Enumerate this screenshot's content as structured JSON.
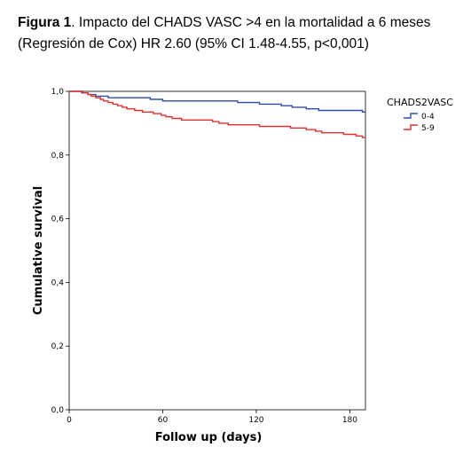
{
  "caption": {
    "label": "Figura 1",
    "text_line1": ". Impacto del CHADS VASC >4 en la mortalidad a 6 meses",
    "text_line2": "(Regresión de Cox) HR 2.60 (95% CI 1.48-4.55, p<0,001)"
  },
  "chart_data": {
    "type": "line",
    "title": "",
    "xlabel": "Follow up (days)",
    "ylabel": "Cumulative survival",
    "xlim": [
      0,
      190
    ],
    "ylim": [
      0.0,
      1.0
    ],
    "x_ticks": [
      {
        "value": 0,
        "label": "0"
      },
      {
        "value": 60,
        "label": "60"
      },
      {
        "value": 120,
        "label": "120"
      },
      {
        "value": 180,
        "label": "180"
      }
    ],
    "y_ticks": [
      {
        "value": 0.0,
        "label": "0,0"
      },
      {
        "value": 0.2,
        "label": "0,2"
      },
      {
        "value": 0.4,
        "label": "0,4"
      },
      {
        "value": 0.6,
        "label": "0,6"
      },
      {
        "value": 0.8,
        "label": "0,8"
      },
      {
        "value": 1.0,
        "label": "1,0"
      }
    ],
    "grid": false,
    "legend": {
      "title": "CHADS2VASC",
      "placement": "top-right"
    },
    "series": [
      {
        "name": "0-4",
        "color": "#2e4da8",
        "step": true,
        "points": [
          [
            0,
            1.0
          ],
          [
            8,
            0.995
          ],
          [
            12,
            0.99
          ],
          [
            17,
            0.985
          ],
          [
            25,
            0.98
          ],
          [
            52,
            0.975
          ],
          [
            60,
            0.97
          ],
          [
            108,
            0.965
          ],
          [
            122,
            0.96
          ],
          [
            136,
            0.955
          ],
          [
            143,
            0.95
          ],
          [
            152,
            0.945
          ],
          [
            160,
            0.94
          ],
          [
            188,
            0.935
          ],
          [
            190,
            0.935
          ]
        ]
      },
      {
        "name": "5-9",
        "color": "#e03030",
        "step": true,
        "points": [
          [
            0,
            1.0
          ],
          [
            9,
            0.995
          ],
          [
            12,
            0.99
          ],
          [
            14,
            0.985
          ],
          [
            17,
            0.98
          ],
          [
            20,
            0.975
          ],
          [
            22,
            0.97
          ],
          [
            25,
            0.965
          ],
          [
            28,
            0.96
          ],
          [
            31,
            0.955
          ],
          [
            34,
            0.95
          ],
          [
            37,
            0.945
          ],
          [
            42,
            0.94
          ],
          [
            47,
            0.935
          ],
          [
            54,
            0.93
          ],
          [
            59,
            0.925
          ],
          [
            62,
            0.92
          ],
          [
            66,
            0.915
          ],
          [
            72,
            0.91
          ],
          [
            92,
            0.905
          ],
          [
            96,
            0.9
          ],
          [
            102,
            0.895
          ],
          [
            122,
            0.89
          ],
          [
            142,
            0.885
          ],
          [
            152,
            0.88
          ],
          [
            158,
            0.875
          ],
          [
            162,
            0.87
          ],
          [
            176,
            0.865
          ],
          [
            184,
            0.86
          ],
          [
            188,
            0.855
          ],
          [
            190,
            0.855
          ]
        ]
      }
    ]
  }
}
